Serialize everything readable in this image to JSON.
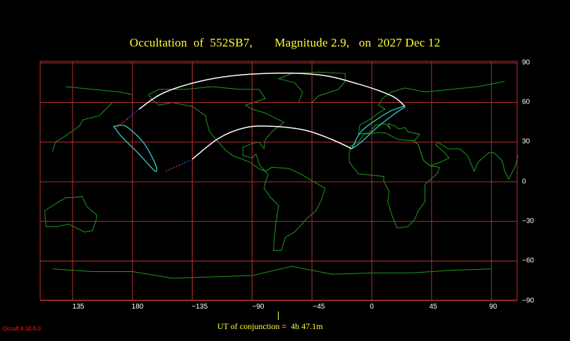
{
  "title": "Occultation  of  552SB7,       Magnitude 2.9,   on  2027 Dec 12",
  "x_axis": {
    "ticks": [
      "135",
      "180",
      "−135",
      "−90",
      "−45",
      "0",
      "45",
      "90"
    ]
  },
  "y_axis": {
    "ticks": [
      "90",
      "60",
      "30",
      "0",
      "−30",
      "−60",
      "−90"
    ]
  },
  "ut_label": "UT of conjunction =  4h 47.1m",
  "version": "Occult 4.10.6.0",
  "colors": {
    "title": "#ffff33",
    "grid": "#b03030",
    "coastline": "#1f9a1f",
    "path_edge": "#ffffff",
    "center_marker": "#33cccc",
    "dotted_red": "#ff3030",
    "dotted_blue": "#3060ff"
  },
  "chart_data": {
    "type": "map",
    "projection": "equirectangular",
    "x_ticks": [
      135,
      180,
      -135,
      -90,
      -45,
      0,
      45,
      90
    ],
    "y_ticks": [
      90,
      60,
      30,
      0,
      -30,
      -60,
      -90
    ],
    "grid": true,
    "occultation_path": {
      "north_limit": [
        [
          -175,
          55
        ],
        [
          -155,
          68
        ],
        [
          -120,
          78
        ],
        [
          -80,
          82
        ],
        [
          -40,
          81
        ],
        [
          -10,
          74
        ],
        [
          15,
          65
        ],
        [
          25,
          57
        ]
      ],
      "south_limit": [
        [
          -135,
          17
        ],
        [
          -115,
          33
        ],
        [
          -95,
          41
        ],
        [
          -75,
          42
        ],
        [
          -50,
          39
        ],
        [
          -30,
          32
        ],
        [
          -15,
          25
        ]
      ],
      "extension_north_dotted": [
        [
          -193,
          40
        ],
        [
          -175,
          55
        ]
      ],
      "extension_south_dotted": [
        [
          -155,
          8
        ],
        [
          -135,
          17
        ]
      ],
      "loops": [
        {
          "name": "west",
          "points": [
            [
              -194,
              42
            ],
            [
              -188,
              34
            ],
            [
              -176,
              22
            ],
            [
              -165,
              10
            ],
            [
              -162,
              8
            ],
            [
              -163,
              14
            ],
            [
              -172,
              30
            ],
            [
              -185,
              42
            ],
            [
              -194,
              42
            ]
          ]
        },
        {
          "name": "east",
          "points": [
            [
              -15,
              25
            ],
            [
              -8,
              38
            ],
            [
              5,
              48
            ],
            [
              15,
              54
            ],
            [
              25,
              57
            ],
            [
              18,
              52
            ],
            [
              5,
              42
            ],
            [
              -8,
              30
            ],
            [
              -15,
              25
            ]
          ]
        }
      ]
    }
  }
}
